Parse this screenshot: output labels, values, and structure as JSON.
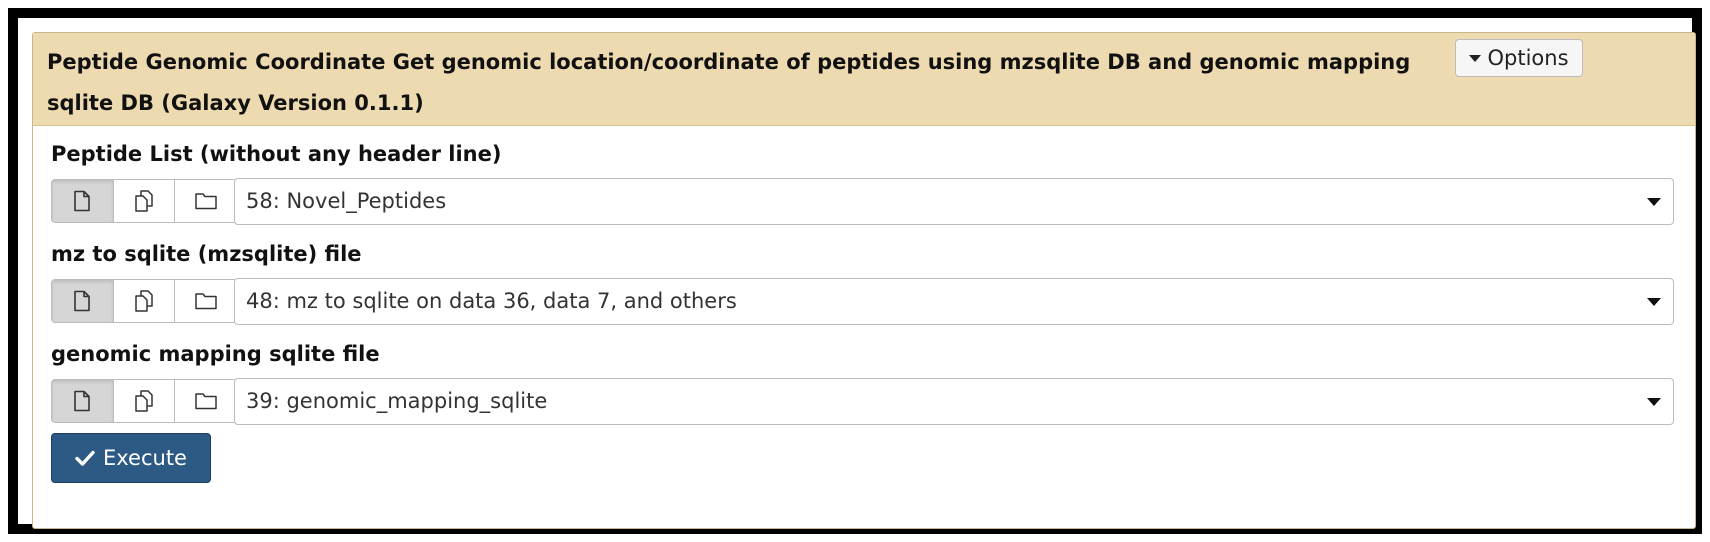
{
  "tool": {
    "title": "Peptide Genomic Coordinate Get genomic location/coordinate of peptides using mzsqlite DB and genomic mapping sqlite DB (Galaxy Version 0.1.1)",
    "options_label": "Options"
  },
  "fields": [
    {
      "label": "Peptide List (without any header line)",
      "value": "58: Novel_Peptides"
    },
    {
      "label": "mz to sqlite (mzsqlite) file",
      "value": "48: mz to sqlite on data 36, data 7, and others"
    },
    {
      "label": "genomic mapping sqlite file",
      "value": "39: genomic_mapping_sqlite"
    }
  ],
  "input_modes": [
    "single-dataset-icon",
    "multiple-datasets-icon",
    "dataset-collection-icon"
  ],
  "execute_label": "Execute",
  "colors": {
    "header_bg": "#eddab0",
    "execute_bg": "#2c5a84"
  }
}
